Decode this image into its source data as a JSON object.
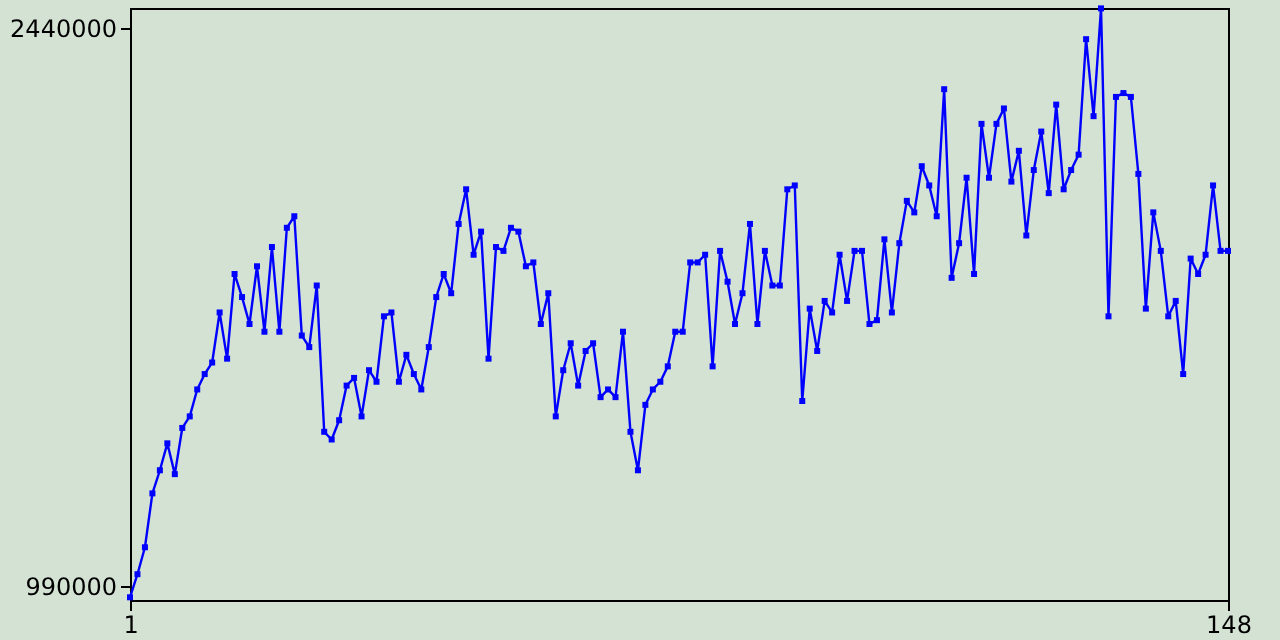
{
  "chart_data": {
    "type": "line",
    "marker": "square",
    "line_style": "solid",
    "grid": false,
    "legend": false,
    "xlim": [
      1,
      148
    ],
    "xticks": [
      1,
      148
    ],
    "ylim": [
      953000,
      2491000
    ],
    "yticks": [
      990000,
      2440000
    ],
    "x": [
      1,
      2,
      3,
      4,
      5,
      6,
      7,
      8,
      9,
      10,
      11,
      12,
      13,
      14,
      15,
      16,
      17,
      18,
      19,
      20,
      21,
      22,
      23,
      24,
      25,
      26,
      27,
      28,
      29,
      30,
      31,
      32,
      33,
      34,
      35,
      36,
      37,
      38,
      39,
      40,
      41,
      42,
      43,
      44,
      45,
      46,
      47,
      48,
      49,
      50,
      51,
      52,
      53,
      54,
      55,
      56,
      57,
      58,
      59,
      60,
      61,
      62,
      63,
      64,
      65,
      66,
      67,
      68,
      69,
      70,
      71,
      72,
      73,
      74,
      75,
      76,
      77,
      78,
      79,
      80,
      81,
      82,
      83,
      84,
      85,
      86,
      87,
      88,
      89,
      90,
      91,
      92,
      93,
      94,
      95,
      96,
      97,
      98,
      99,
      100,
      101,
      102,
      103,
      104,
      105,
      106,
      107,
      108,
      109,
      110,
      111,
      112,
      113,
      114,
      115,
      116,
      117,
      118,
      119,
      120,
      121,
      122,
      123,
      124,
      125,
      126,
      127,
      128,
      129,
      130,
      131,
      132,
      133,
      134,
      135,
      136,
      137,
      138,
      139,
      140,
      141,
      142,
      143,
      144,
      145,
      146,
      147,
      148
    ],
    "series": [
      {
        "color": "#0000ff",
        "values": [
          960000,
          1020000,
          1090000,
          1230000,
          1290000,
          1360000,
          1280000,
          1400000,
          1430000,
          1500000,
          1540000,
          1570000,
          1700000,
          1580000,
          1800000,
          1740000,
          1670000,
          1820000,
          1650000,
          1870000,
          1650000,
          1920000,
          1950000,
          1640000,
          1610000,
          1770000,
          1390000,
          1370000,
          1420000,
          1510000,
          1530000,
          1430000,
          1550000,
          1520000,
          1690000,
          1700000,
          1520000,
          1590000,
          1540000,
          1500000,
          1610000,
          1740000,
          1800000,
          1750000,
          1930000,
          2020000,
          1850000,
          1910000,
          1580000,
          1870000,
          1860000,
          1920000,
          1910000,
          1820000,
          1830000,
          1670000,
          1750000,
          1430000,
          1550000,
          1620000,
          1510000,
          1600000,
          1620000,
          1480000,
          1500000,
          1480000,
          1650000,
          1390000,
          1290000,
          1460000,
          1500000,
          1520000,
          1560000,
          1650000,
          1650000,
          1830000,
          1830000,
          1850000,
          1560000,
          1860000,
          1780000,
          1670000,
          1750000,
          1930000,
          1670000,
          1860000,
          1770000,
          1770000,
          2020000,
          2030000,
          1470000,
          1710000,
          1600000,
          1730000,
          1700000,
          1850000,
          1730000,
          1860000,
          1860000,
          1670000,
          1680000,
          1890000,
          1700000,
          1880000,
          1990000,
          1960000,
          2080000,
          2030000,
          1950000,
          2280000,
          1790000,
          1880000,
          2050000,
          1800000,
          2190000,
          2050000,
          2190000,
          2230000,
          2040000,
          2120000,
          1900000,
          2070000,
          2170000,
          2010000,
          2240000,
          2020000,
          2070000,
          2110000,
          2410000,
          2210000,
          2490000,
          1690000,
          2260000,
          2270000,
          2260000,
          2060000,
          1710000,
          1960000,
          1860000,
          1690000,
          1730000,
          1540000,
          1840000,
          1800000,
          1850000,
          2030000,
          1860000,
          1860000
        ]
      }
    ]
  }
}
